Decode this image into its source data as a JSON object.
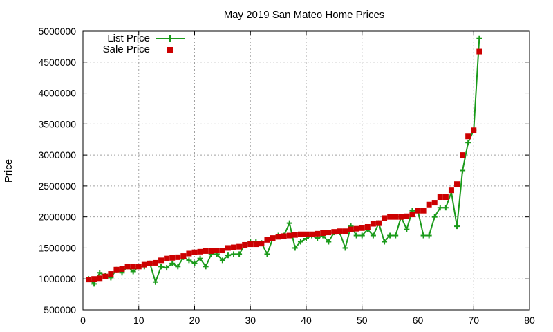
{
  "chart_data": {
    "type": "line",
    "title": "May 2019 San Mateo Home Prices",
    "xlabel": "",
    "ylabel": "Price",
    "xlim": [
      0,
      80
    ],
    "ylim": [
      500000,
      5000000
    ],
    "xticks": [
      0,
      10,
      20,
      30,
      40,
      50,
      60,
      70,
      80
    ],
    "yticks": [
      500000,
      1000000,
      1500000,
      2000000,
      2500000,
      3000000,
      3500000,
      4000000,
      4500000,
      5000000
    ],
    "grid": true,
    "legend_position": "top-left",
    "series": [
      {
        "name": "List Price",
        "style": "line-with-plus-markers",
        "color": "#1a9a1a",
        "x": [
          1,
          2,
          3,
          4,
          5,
          6,
          7,
          8,
          9,
          10,
          11,
          12,
          13,
          14,
          15,
          16,
          17,
          18,
          19,
          20,
          21,
          22,
          23,
          24,
          25,
          26,
          27,
          28,
          29,
          30,
          31,
          32,
          33,
          34,
          35,
          36,
          37,
          38,
          39,
          40,
          41,
          42,
          43,
          44,
          45,
          46,
          47,
          48,
          49,
          50,
          51,
          52,
          53,
          54,
          55,
          56,
          57,
          58,
          59,
          60,
          61,
          62,
          63,
          64,
          65,
          66,
          67,
          68,
          69,
          70,
          71
        ],
        "values": [
          1000000,
          920000,
          1100000,
          1050000,
          1020000,
          1150000,
          1100000,
          1200000,
          1120000,
          1200000,
          1200000,
          1250000,
          950000,
          1200000,
          1180000,
          1250000,
          1200000,
          1350000,
          1300000,
          1250000,
          1330000,
          1200000,
          1400000,
          1400000,
          1300000,
          1380000,
          1400000,
          1400000,
          1550000,
          1600000,
          1600000,
          1580000,
          1400000,
          1650000,
          1700000,
          1700000,
          1900000,
          1500000,
          1600000,
          1650000,
          1700000,
          1650000,
          1700000,
          1600000,
          1750000,
          1750000,
          1500000,
          1850000,
          1700000,
          1700000,
          1800000,
          1700000,
          1900000,
          1600000,
          1700000,
          1700000,
          2000000,
          1800000,
          2100000,
          2100000,
          1700000,
          1700000,
          2000000,
          2150000,
          2150000,
          2400000,
          1850000,
          2750000,
          3200000,
          3400000,
          4880000
        ]
      },
      {
        "name": "Sale Price",
        "style": "square-markers",
        "color": "#cc0000",
        "x": [
          1,
          2,
          3,
          4,
          5,
          6,
          7,
          8,
          9,
          10,
          11,
          12,
          13,
          14,
          15,
          16,
          17,
          18,
          19,
          20,
          21,
          22,
          23,
          24,
          25,
          26,
          27,
          28,
          29,
          30,
          31,
          32,
          33,
          34,
          35,
          36,
          37,
          38,
          39,
          40,
          41,
          42,
          43,
          44,
          45,
          46,
          47,
          48,
          49,
          50,
          51,
          52,
          53,
          54,
          55,
          56,
          57,
          58,
          59,
          60,
          61,
          62,
          63,
          64,
          65,
          66,
          67,
          68,
          69,
          70,
          71
        ],
        "values": [
          990000,
          1000000,
          1010000,
          1040000,
          1080000,
          1150000,
          1160000,
          1200000,
          1200000,
          1200000,
          1230000,
          1250000,
          1260000,
          1300000,
          1330000,
          1340000,
          1350000,
          1370000,
          1410000,
          1430000,
          1440000,
          1450000,
          1450000,
          1460000,
          1460000,
          1500000,
          1510000,
          1520000,
          1550000,
          1560000,
          1560000,
          1570000,
          1630000,
          1660000,
          1680000,
          1690000,
          1700000,
          1710000,
          1720000,
          1720000,
          1720000,
          1730000,
          1740000,
          1750000,
          1760000,
          1770000,
          1770000,
          1800000,
          1810000,
          1820000,
          1840000,
          1890000,
          1900000,
          1980000,
          2000000,
          2000000,
          2000000,
          2010000,
          2040000,
          2100000,
          2100000,
          2200000,
          2230000,
          2320000,
          2320000,
          2430000,
          2530000,
          3000000,
          3300000,
          3400000,
          4670000
        ]
      }
    ]
  }
}
